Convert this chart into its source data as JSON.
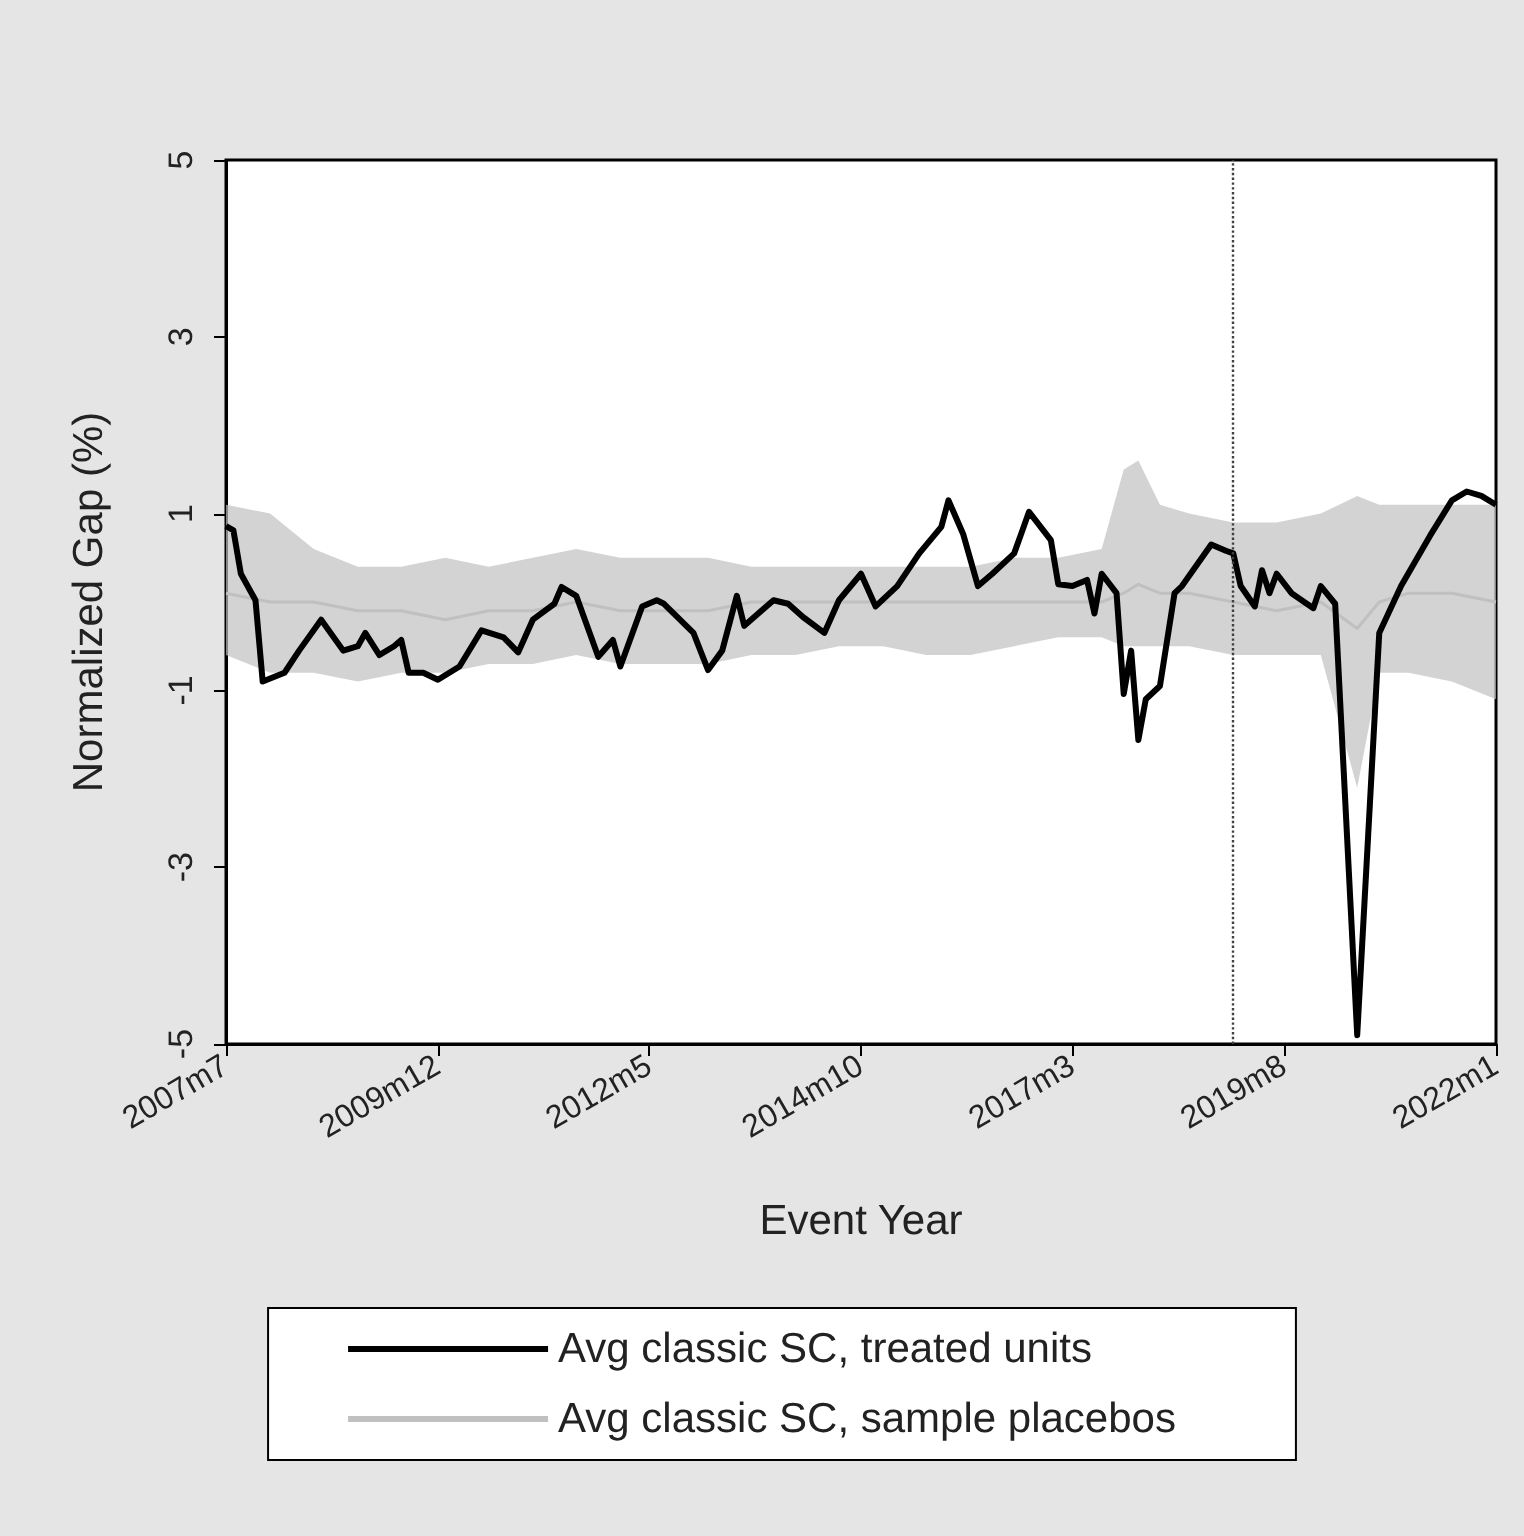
{
  "chart_data": {
    "type": "line",
    "xlabel": "Event Year",
    "ylabel": "Normalized Gap (%)",
    "x": [
      "2007-07",
      "2007-08",
      "2007-09",
      "2007-11",
      "2007-12",
      "2008-03",
      "2008-05",
      "2008-08",
      "2008-11",
      "2009-01",
      "2009-02",
      "2009-04",
      "2009-06",
      "2009-07",
      "2009-08",
      "2009-10",
      "2009-12",
      "2010-03",
      "2010-06",
      "2010-09",
      "2010-11",
      "2011-01",
      "2011-04",
      "2011-05",
      "2011-07",
      "2011-10",
      "2011-12",
      "2012-01",
      "2012-04",
      "2012-06",
      "2012-07",
      "2012-11",
      "2013-01",
      "2013-03",
      "2013-05",
      "2013-06",
      "2013-10",
      "2013-12",
      "2014-02",
      "2014-05",
      "2014-07",
      "2014-10",
      "2014-12",
      "2015-03",
      "2015-06",
      "2015-09",
      "2015-10",
      "2015-12",
      "2016-02",
      "2016-04",
      "2016-07",
      "2016-09",
      "2016-12",
      "2017-01",
      "2017-03",
      "2017-05",
      "2017-06",
      "2017-07",
      "2017-09",
      "2017-10",
      "2017-11",
      "2017-12",
      "2018-01",
      "2018-03",
      "2018-05",
      "2018-06",
      "2018-10",
      "2018-12",
      "2019-01",
      "2019-02",
      "2019-04",
      "2019-05",
      "2019-06",
      "2019-07",
      "2019-09",
      "2019-12",
      "2020-01",
      "2020-03",
      "2020-06",
      "2020-09",
      "2020-12",
      "2021-04",
      "2021-07",
      "2021-09",
      "2021-11",
      "2022-01"
    ],
    "series": [
      {
        "name": "Avg classic SC, sample placebos",
        "color": "#c0c0c0",
        "x": [
          "2007-07",
          "2008-01",
          "2008-07",
          "2009-01",
          "2009-07",
          "2010-01",
          "2010-07",
          "2011-01",
          "2011-07",
          "2012-01",
          "2012-07",
          "2013-01",
          "2013-07",
          "2014-01",
          "2014-07",
          "2015-01",
          "2015-07",
          "2016-01",
          "2016-07",
          "2017-01",
          "2017-07",
          "2017-10",
          "2017-12",
          "2018-03",
          "2018-07",
          "2019-01",
          "2019-07",
          "2020-01",
          "2020-06",
          "2020-09",
          "2021-01",
          "2021-07",
          "2022-01"
        ],
        "values": [
          0.1,
          0.0,
          0.0,
          -0.1,
          -0.1,
          -0.2,
          -0.1,
          -0.1,
          0.0,
          -0.1,
          -0.1,
          -0.1,
          0.0,
          0.0,
          0.0,
          0.0,
          0.0,
          0.0,
          0.0,
          0.0,
          0.0,
          0.1,
          0.2,
          0.1,
          0.1,
          0.0,
          -0.1,
          0.0,
          -0.3,
          0.0,
          0.1,
          0.1,
          0.0
        ],
        "lower": [
          -0.6,
          -0.8,
          -0.8,
          -0.9,
          -0.8,
          -0.8,
          -0.7,
          -0.7,
          -0.6,
          -0.7,
          -0.7,
          -0.7,
          -0.6,
          -0.6,
          -0.5,
          -0.5,
          -0.6,
          -0.6,
          -0.5,
          -0.4,
          -0.4,
          -0.5,
          -0.5,
          -0.5,
          -0.5,
          -0.6,
          -0.6,
          -0.6,
          -2.1,
          -0.8,
          -0.8,
          -0.9,
          -1.1
        ],
        "upper": [
          1.1,
          1.0,
          0.6,
          0.4,
          0.4,
          0.5,
          0.4,
          0.5,
          0.6,
          0.5,
          0.5,
          0.5,
          0.4,
          0.4,
          0.4,
          0.4,
          0.4,
          0.4,
          0.5,
          0.5,
          0.6,
          1.5,
          1.6,
          1.1,
          1.0,
          0.9,
          0.9,
          1.0,
          1.2,
          1.1,
          1.1,
          1.1,
          1.1
        ]
      },
      {
        "name": "Avg classic SC, treated units",
        "color": "#000000",
        "values": [
          0.86,
          0.81,
          0.32,
          0.02,
          -0.9,
          -0.8,
          -0.55,
          -0.2,
          -0.55,
          -0.5,
          -0.35,
          -0.6,
          -0.5,
          -0.43,
          -0.8,
          -0.8,
          -0.88,
          -0.73,
          -0.32,
          -0.4,
          -0.57,
          -0.2,
          -0.02,
          0.17,
          0.07,
          -0.62,
          -0.43,
          -0.73,
          -0.05,
          0.02,
          -0.02,
          -0.35,
          -0.77,
          -0.55,
          0.07,
          -0.27,
          0.02,
          -0.02,
          -0.17,
          -0.35,
          0.02,
          0.32,
          -0.05,
          0.18,
          0.55,
          0.85,
          1.15,
          0.77,
          0.18,
          0.32,
          0.55,
          1.02,
          0.7,
          0.2,
          0.18,
          0.25,
          -0.13,
          0.32,
          0.1,
          -1.04,
          -0.55,
          -1.56,
          -1.1,
          -0.95,
          0.1,
          0.18,
          0.65,
          0.58,
          0.55,
          0.18,
          -0.05,
          0.36,
          0.1,
          0.32,
          0.1,
          -0.07,
          0.18,
          -0.02,
          -4.9,
          -0.35,
          0.18,
          0.75,
          1.15,
          1.25,
          1.2,
          1.1
        ]
      }
    ],
    "xlim": [
      "2007-07",
      "2022-01"
    ],
    "xticks": [
      {
        "value": "2007-07",
        "label": "2007m7"
      },
      {
        "value": "2009-12",
        "label": "2009m12"
      },
      {
        "value": "2012-05",
        "label": "2012m5"
      },
      {
        "value": "2014-10",
        "label": "2014m10"
      },
      {
        "value": "2017-03",
        "label": "2017m3"
      },
      {
        "value": "2019-08",
        "label": "2019m8"
      },
      {
        "value": "2022-01",
        "label": "2022m1"
      }
    ],
    "ylim": [
      -5,
      5
    ],
    "yticks": [
      -5,
      -3,
      -1,
      1,
      3,
      5
    ],
    "ref_lines": [
      {
        "axis": "x",
        "value": "2019-01",
        "color": "#404040",
        "line_style": "dotted"
      }
    ],
    "grid": false,
    "legend": "bottom",
    "marker": "none",
    "line_style": "solid"
  }
}
